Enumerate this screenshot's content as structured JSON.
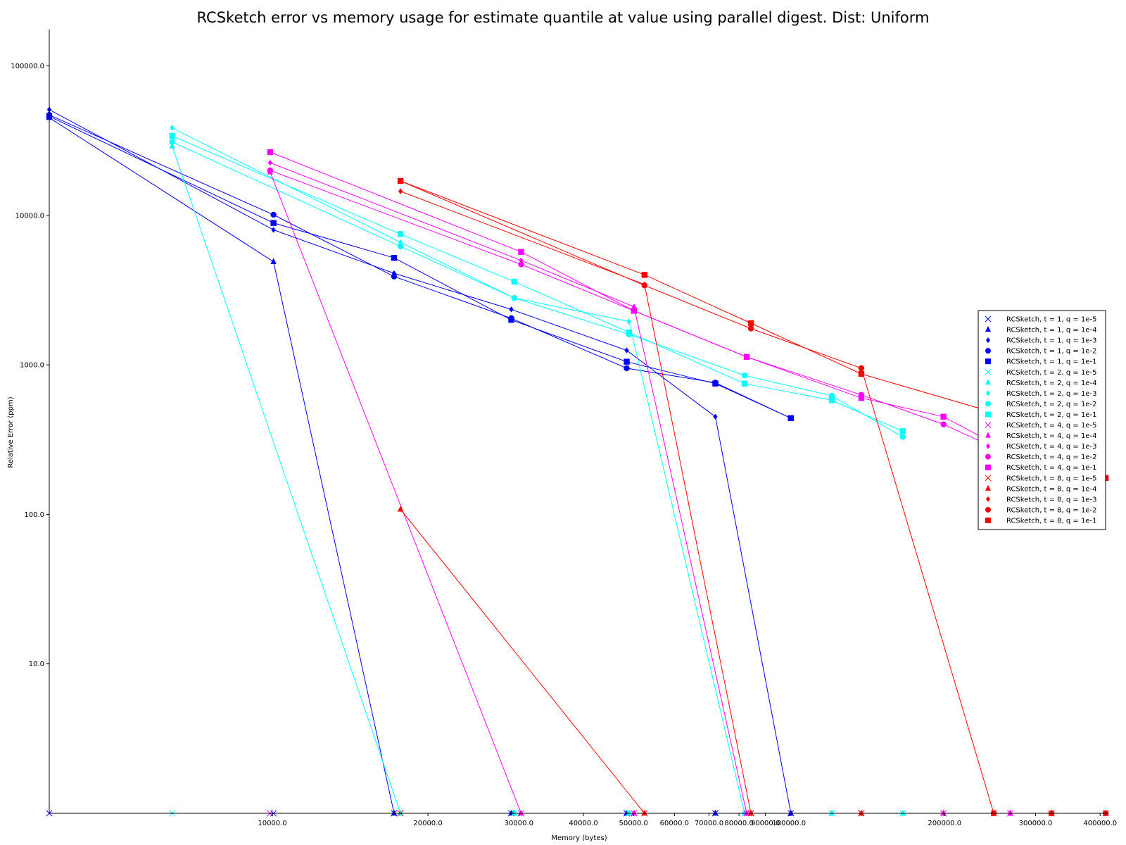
{
  "chart_data": {
    "type": "line",
    "title": "RCSketch error vs memory usage for estimate quantile at value using parallel digest. Dist: Uniform",
    "xlabel": "Memory (bytes)",
    "ylabel": "Relative Error (ppm)",
    "xscale": "log",
    "yscale": "log",
    "xlim": [
      3700,
      415000
    ],
    "ylim": [
      1,
      175000
    ],
    "legend_position": "center-right",
    "xticks": [
      {
        "value": 10000,
        "label": "10000.0"
      },
      {
        "value": 20000,
        "label": "20000.0"
      },
      {
        "value": 30000,
        "label": "30000.0"
      },
      {
        "value": 40000,
        "label": "40000.0"
      },
      {
        "value": 50000,
        "label": "50000.0"
      },
      {
        "value": 60000,
        "label": "60000.0"
      },
      {
        "value": 70000,
        "label": "70000.0"
      },
      {
        "value": 80000,
        "label": "80000.0"
      },
      {
        "value": 90000,
        "label": "90000.0"
      },
      {
        "value": 100000,
        "label": "100000.0"
      },
      {
        "value": 200000,
        "label": "200000.0"
      },
      {
        "value": 300000,
        "label": "300000.0"
      },
      {
        "value": 400000,
        "label": "400000.0"
      }
    ],
    "yticks": [
      {
        "value": 10,
        "label": "10.0"
      },
      {
        "value": 100,
        "label": "100.0"
      },
      {
        "value": 1000,
        "label": "1000.0"
      },
      {
        "value": 10000,
        "label": "10000.0"
      },
      {
        "value": 100000,
        "label": "100000.0"
      }
    ],
    "series": [
      {
        "name": "RCSketch, t = 1, q = 1e-5",
        "color": "#0000ff",
        "marker": "x",
        "x": [
          3700,
          10050,
          17200,
          29000,
          48500,
          72000,
          100800
        ],
        "y": [
          1,
          1,
          1,
          1,
          1,
          1,
          1
        ]
      },
      {
        "name": "RCSketch, t = 1, q = 1e-4",
        "color": "#0000ff",
        "marker": "triangle",
        "x": [
          3700,
          10050,
          17200,
          29000,
          48500,
          72000,
          100800
        ],
        "y": [
          45000,
          4900,
          1,
          1,
          1,
          1,
          1
        ]
      },
      {
        "name": "RCSketch, t = 1, q = 1e-3",
        "color": "#0000ff",
        "marker": "diamond",
        "x": [
          3700,
          10050,
          17200,
          29000,
          48500,
          72000,
          100800
        ],
        "y": [
          51000,
          8000,
          4100,
          2350,
          1250,
          450,
          1
        ]
      },
      {
        "name": "RCSketch, t = 1, q = 1e-2",
        "color": "#0000ff",
        "marker": "circle",
        "x": [
          3700,
          10050,
          17200,
          29000,
          48500,
          72000,
          100800
        ],
        "y": [
          47000,
          10100,
          3900,
          2050,
          950,
          760,
          440
        ]
      },
      {
        "name": "RCSketch, t = 1, q = 1e-1",
        "color": "#0000ff",
        "marker": "square",
        "x": [
          3700,
          10050,
          17200,
          29000,
          48500,
          72000,
          100800
        ],
        "y": [
          46000,
          8900,
          5200,
          2000,
          1050,
          750,
          440
        ]
      },
      {
        "name": "RCSketch, t = 2, q = 1e-5",
        "color": "#00ffff",
        "marker": "x",
        "x": [
          6400,
          17700,
          29400,
          49000,
          82000,
          121000,
          166000
        ],
        "y": [
          1,
          1,
          1,
          1,
          1,
          1,
          1
        ]
      },
      {
        "name": "RCSketch, t = 2, q = 1e-4",
        "color": "#00ffff",
        "marker": "triangle",
        "x": [
          6400,
          17700,
          29400,
          49000,
          82000,
          121000,
          166000
        ],
        "y": [
          29000,
          1,
          1,
          1,
          1,
          1,
          1
        ]
      },
      {
        "name": "RCSketch, t = 2, q = 1e-3",
        "color": "#00ffff",
        "marker": "diamond",
        "x": [
          6400,
          17700,
          29400,
          49000,
          82000,
          121000,
          166000
        ],
        "y": [
          38500,
          6600,
          2800,
          1950,
          1,
          1,
          1
        ]
      },
      {
        "name": "RCSketch, t = 2, q = 1e-2",
        "color": "#00ffff",
        "marker": "circle",
        "x": [
          6400,
          17700,
          29400,
          49000,
          82000,
          121000,
          166000
        ],
        "y": [
          31000,
          6200,
          2800,
          1600,
          850,
          620,
          330
        ]
      },
      {
        "name": "RCSketch, t = 2, q = 1e-1",
        "color": "#00ffff",
        "marker": "square",
        "x": [
          6400,
          17700,
          29400,
          49000,
          82000,
          121000,
          166000
        ],
        "y": [
          34000,
          7500,
          3600,
          1650,
          750,
          580,
          360
        ]
      },
      {
        "name": "RCSketch, t = 4, q = 1e-5",
        "color": "#ff00ff",
        "marker": "x",
        "x": [
          9900,
          30300,
          50100,
          82800,
          138000,
          199000,
          268000
        ],
        "y": [
          1,
          1,
          1,
          1,
          1,
          1,
          1
        ]
      },
      {
        "name": "RCSketch, t = 4, q = 1e-4",
        "color": "#ff00ff",
        "marker": "triangle",
        "x": [
          9900,
          30300,
          50100,
          82800,
          138000,
          199000,
          268000
        ],
        "y": [
          19500,
          1,
          1,
          1,
          1,
          1,
          1
        ]
      },
      {
        "name": "RCSketch, t = 4, q = 1e-3",
        "color": "#ff00ff",
        "marker": "diamond",
        "x": [
          9900,
          30300,
          50100,
          82800,
          138000,
          199000,
          268000
        ],
        "y": [
          22500,
          5000,
          2450,
          1,
          1,
          1,
          1
        ]
      },
      {
        "name": "RCSketch, t = 4, q = 1e-2",
        "color": "#ff00ff",
        "marker": "circle",
        "x": [
          9900,
          30300,
          50100,
          82800,
          138000,
          199000,
          268000
        ],
        "y": [
          20000,
          4700,
          2300,
          1130,
          630,
          400,
          250
        ]
      },
      {
        "name": "RCSketch, t = 4, q = 1e-1",
        "color": "#ff00ff",
        "marker": "square",
        "x": [
          9900,
          30300,
          50100,
          82800,
          138000,
          199000,
          268000
        ],
        "y": [
          26500,
          5700,
          2300,
          1130,
          600,
          450,
          260
        ]
      },
      {
        "name": "RCSketch, t = 8, q = 1e-5",
        "color": "#ff0000",
        "marker": "x",
        "x": [
          17700,
          52500,
          84400,
          138000,
          249000,
          322000,
          410000
        ],
        "y": [
          1,
          1,
          1,
          1,
          1,
          1,
          1
        ]
      },
      {
        "name": "RCSketch, t = 8, q = 1e-4",
        "color": "#ff0000",
        "marker": "triangle",
        "x": [
          17700,
          52500,
          84400,
          138000,
          249000,
          322000,
          410000
        ],
        "y": [
          108,
          1,
          1,
          1,
          1,
          1,
          1
        ]
      },
      {
        "name": "RCSketch, t = 8, q = 1e-3",
        "color": "#ff0000",
        "marker": "diamond",
        "x": [
          17700,
          52500,
          84400,
          138000,
          249000,
          322000,
          410000
        ],
        "y": [
          14500,
          3450,
          1,
          1,
          1,
          1,
          1
        ]
      },
      {
        "name": "RCSketch, t = 8, q = 1e-2",
        "color": "#ff0000",
        "marker": "circle",
        "x": [
          17700,
          52500,
          84400,
          138000,
          249000,
          322000,
          410000
        ],
        "y": [
          17000,
          3400,
          1750,
          950,
          1,
          1,
          1
        ]
      },
      {
        "name": "RCSketch, t = 8, q = 1e-1",
        "color": "#ff0000",
        "marker": "square",
        "x": [
          17700,
          52500,
          84400,
          138000,
          249000,
          322000,
          410000
        ],
        "y": [
          17000,
          4000,
          1900,
          870,
          480,
          360,
          175
        ]
      }
    ]
  }
}
